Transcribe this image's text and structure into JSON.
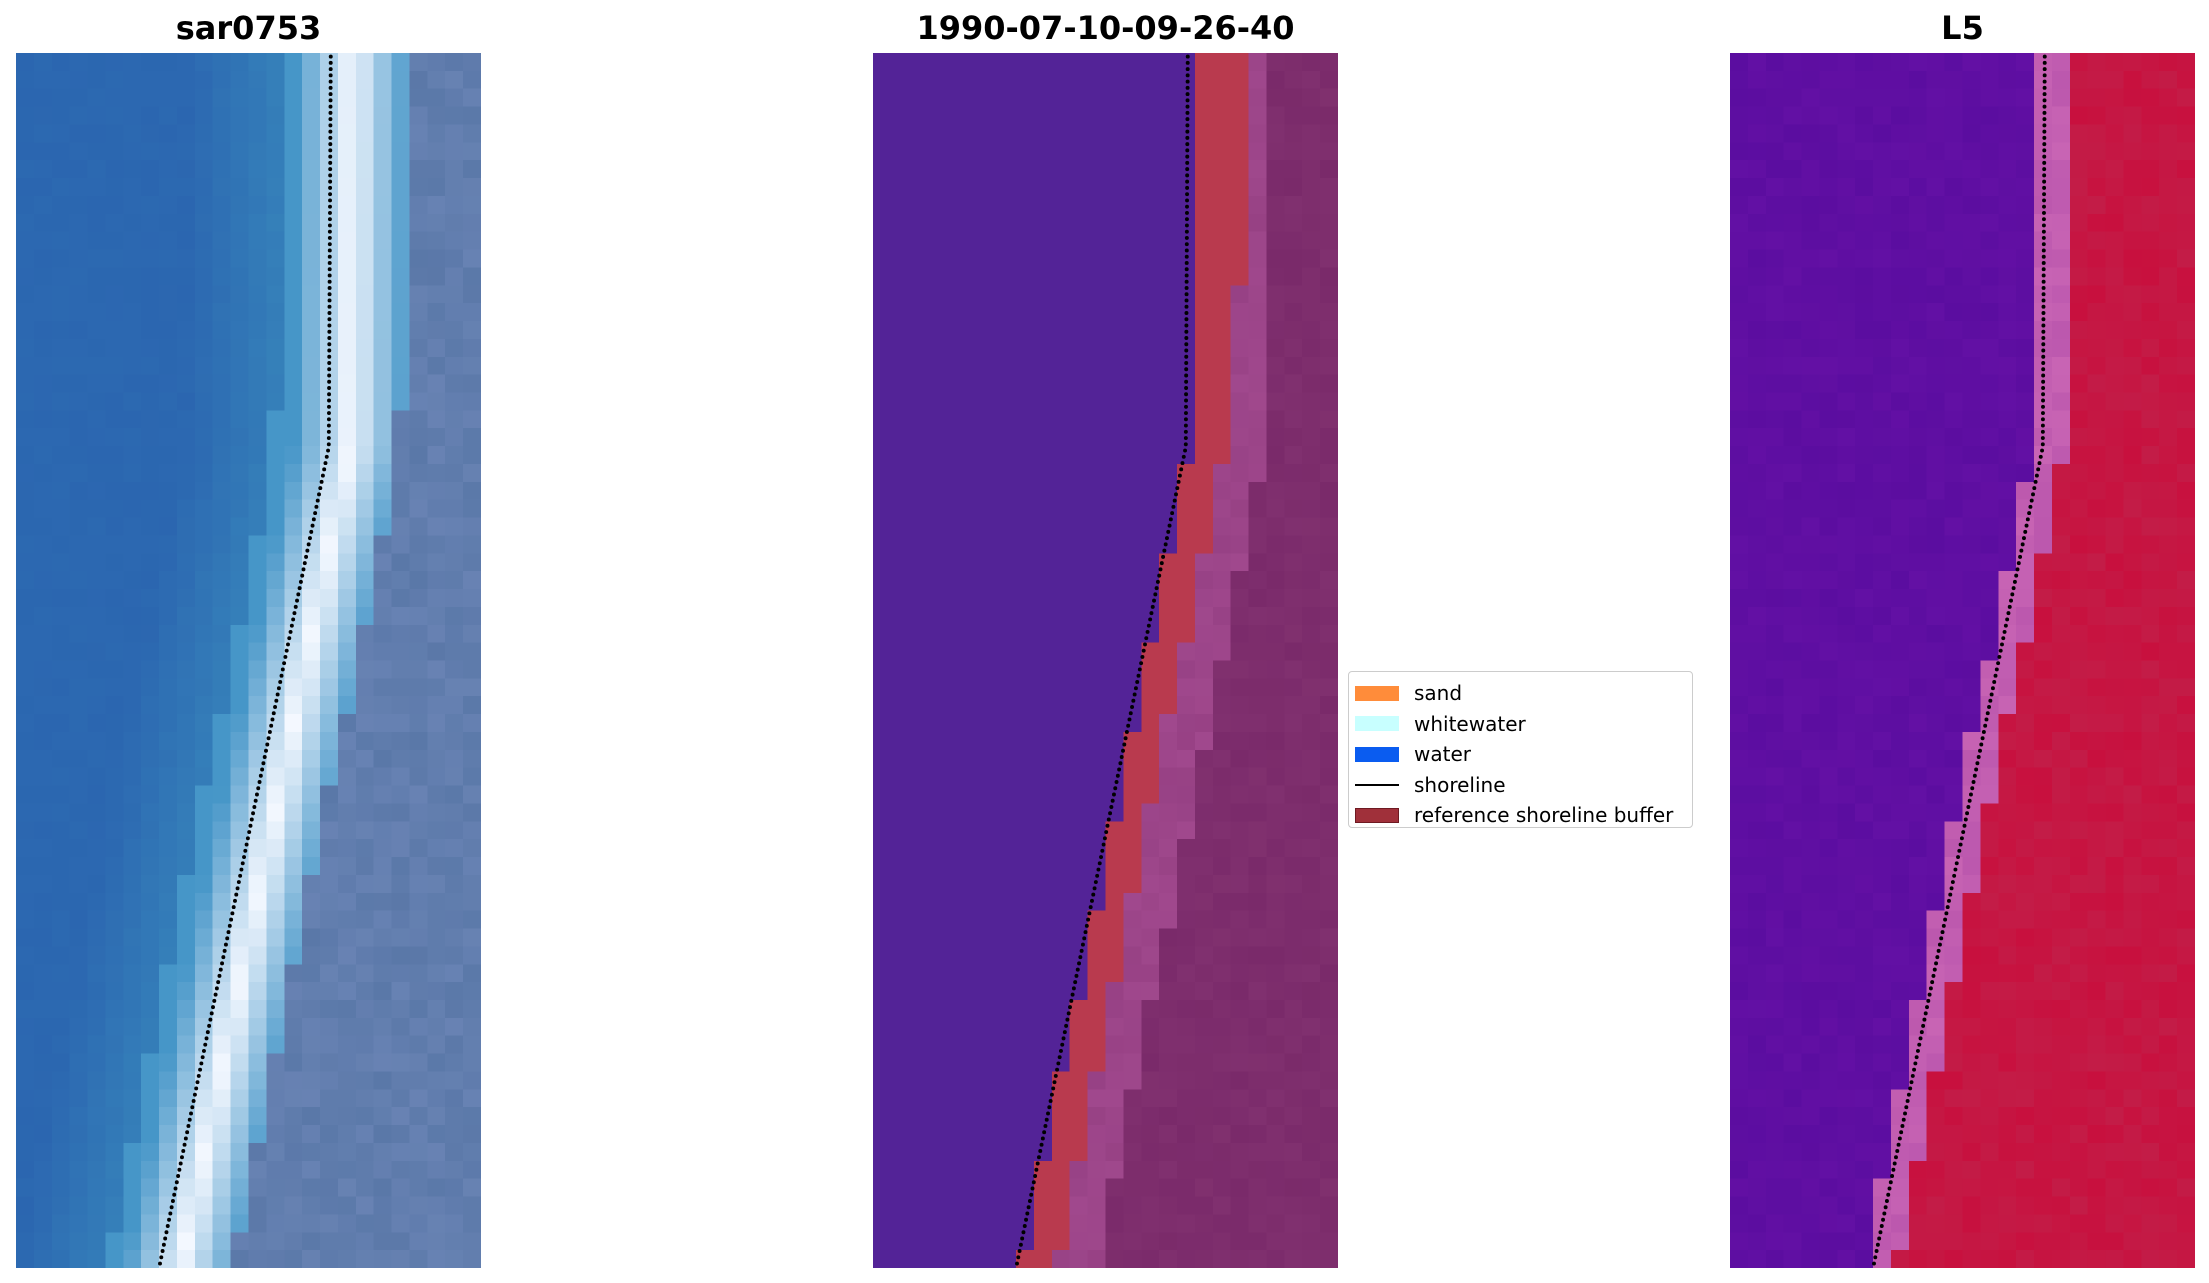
{
  "panels": [
    {
      "title": "sar0753",
      "kind": "rgb"
    },
    {
      "title": "1990-07-10-09-26-40",
      "kind": "classified"
    },
    {
      "title": "L5",
      "kind": "index"
    }
  ],
  "legend": {
    "items": [
      {
        "label": "sand",
        "type": "patch",
        "color": "#ff8c3a"
      },
      {
        "label": "whitewater",
        "type": "patch",
        "color": "#c8ffff"
      },
      {
        "label": "water",
        "type": "patch",
        "color": "#0a5cf0"
      },
      {
        "label": "shoreline",
        "type": "line",
        "color": "#000000"
      },
      {
        "label": "reference shoreline buffer",
        "type": "patch",
        "color": "#a0303a",
        "edge": "#6e1a22"
      }
    ]
  },
  "colors": {
    "water_rgb": "#2b66b0",
    "surf_rgb": "#f4f8ff",
    "land_rgb": "#5a78a8",
    "classified_water": "#532397",
    "classified_buffer": "#b93a4e",
    "classified_land": "#7a2a6a",
    "index_low": "#5b0da0",
    "index_high": "#c8103e"
  }
}
